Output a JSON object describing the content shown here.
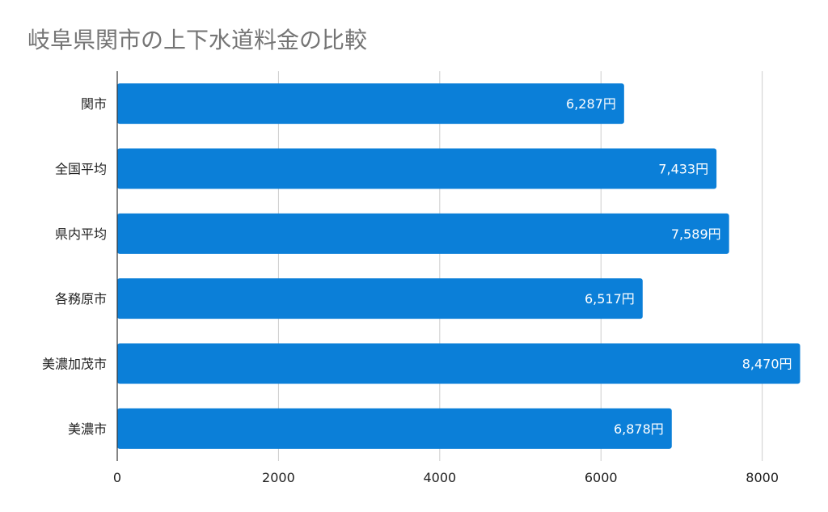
{
  "chart_data": {
    "type": "bar",
    "orientation": "horizontal",
    "title": "岐阜県関市の上下水道料金の比較",
    "categories": [
      "関市",
      "全国平均",
      "県内平均",
      "各務原市",
      "美濃加茂市",
      "美濃市"
    ],
    "values": [
      6287,
      7433,
      7589,
      6517,
      8470,
      6878
    ],
    "data_labels": [
      "6,287円",
      "7,433円",
      "7,589円",
      "6,517円",
      "8,470円",
      "6,878円"
    ],
    "xlim": [
      0,
      8500
    ],
    "xticks": [
      0,
      2000,
      4000,
      6000,
      8000
    ],
    "xtick_labels": [
      "0",
      "2000",
      "4000",
      "6000",
      "8000"
    ],
    "xlabel": "",
    "ylabel": "",
    "grid": true,
    "legend": "none",
    "colors": {
      "bar": "#0b7fd8",
      "grid": "#cccccc",
      "title": "#757575"
    }
  }
}
